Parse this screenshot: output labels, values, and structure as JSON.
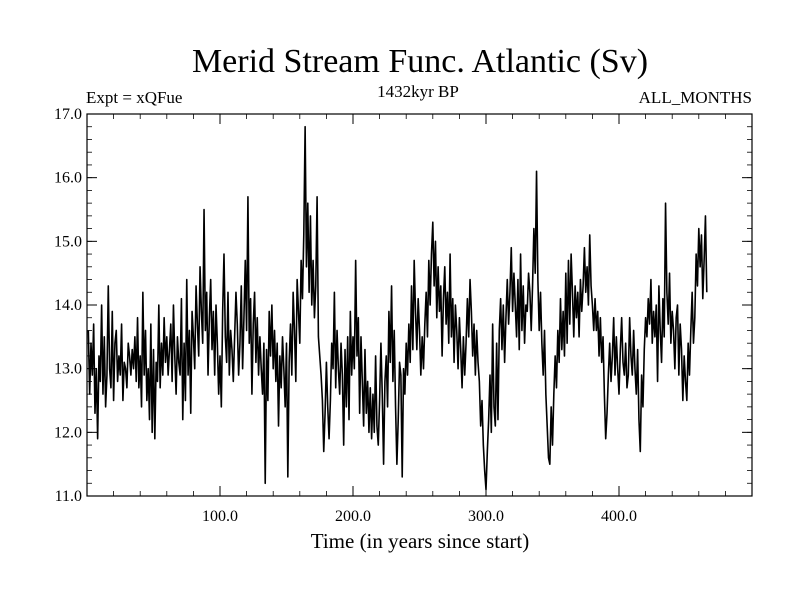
{
  "chart_data": {
    "type": "line",
    "title": "Merid Stream Func. Atlantic (Sv)",
    "subtitle_left": "Expt = xQFue",
    "subtitle_center": "1432kyr BP",
    "subtitle_right": "ALL_MONTHS",
    "xlabel": "Time (in years since start)",
    "ylabel": "",
    "xlim": [
      0,
      500
    ],
    "ylim": [
      11.0,
      17.0
    ],
    "x_ticks": [
      100,
      200,
      300,
      400
    ],
    "x_tick_labels": [
      "100.0",
      "200.0",
      "300.0",
      "400.0"
    ],
    "y_ticks": [
      11,
      12,
      13,
      14,
      15,
      16,
      17
    ],
    "y_tick_labels": [
      "11.0",
      "12.0",
      "13.0",
      "14.0",
      "15.0",
      "16.0",
      "17.0"
    ],
    "grid": false,
    "line_color": "#000000",
    "series": [
      {
        "x_start": 1,
        "x_step": 1,
        "values": [
          13.6,
          12.6,
          13.4,
          12.9,
          13.7,
          12.3,
          13.0,
          11.9,
          13.2,
          12.8,
          14.0,
          12.6,
          13.5,
          12.4,
          12.9,
          14.3,
          13.0,
          12.7,
          13.9,
          12.5,
          13.4,
          13.6,
          12.8,
          13.2,
          12.9,
          13.7,
          12.5,
          13.1,
          13.0,
          12.7,
          13.4,
          13.2,
          12.9,
          13.3,
          13.0,
          13.5,
          12.8,
          13.8,
          12.7,
          13.2,
          12.4,
          14.2,
          12.9,
          13.6,
          12.5,
          13.0,
          12.2,
          13.7,
          12.0,
          13.3,
          11.9,
          13.1,
          12.8,
          14.0,
          12.7,
          13.4,
          12.9,
          13.8,
          13.1,
          13.5,
          12.9,
          13.3,
          13.7,
          12.8,
          14.0,
          13.2,
          12.6,
          13.5,
          13.1,
          12.9,
          14.1,
          12.2,
          13.4,
          12.5,
          14.4,
          12.9,
          13.6,
          12.3,
          13.9,
          13.5,
          13.0,
          14.3,
          13.7,
          13.2,
          14.6,
          13.9,
          13.4,
          15.5,
          13.6,
          14.2,
          12.9,
          13.8,
          14.4,
          13.3,
          13.9,
          12.9,
          14.0,
          13.4,
          12.6,
          13.2,
          12.4,
          13.9,
          14.8,
          13.5,
          13.1,
          14.2,
          12.9,
          13.6,
          13.3,
          12.8,
          13.5,
          14.2,
          13.7,
          12.9,
          13.4,
          14.3,
          13.0,
          13.8,
          14.7,
          13.6,
          15.7,
          13.4,
          14.1,
          12.6,
          13.7,
          14.2,
          13.1,
          13.8,
          12.9,
          13.5,
          13.0,
          12.6,
          13.4,
          11.2,
          13.3,
          12.5,
          13.9,
          13.2,
          14.0,
          13.0,
          13.6,
          12.8,
          13.4,
          12.1,
          13.2,
          12.7,
          13.5,
          13.0,
          12.4,
          13.4,
          11.3,
          13.1,
          13.7,
          12.9,
          14.2,
          13.6,
          12.8,
          14.4,
          13.9,
          13.4,
          14.7,
          14.1,
          15.1,
          16.8,
          14.6,
          15.6,
          14.2,
          15.4,
          14.0,
          14.7,
          13.8,
          14.3,
          15.7,
          13.5,
          13.2,
          12.9,
          12.5,
          11.7,
          12.3,
          13.1,
          12.4,
          11.9,
          12.5,
          13.4,
          13.0,
          14.2,
          12.7,
          13.6,
          13.0,
          12.6,
          13.4,
          12.9,
          11.8,
          13.3,
          12.4,
          13.5,
          12.2,
          13.9,
          12.9,
          13.5,
          13.0,
          14.7,
          13.2,
          13.8,
          12.3,
          13.5,
          12.8,
          12.1,
          13.3,
          12.3,
          12.8,
          12.0,
          12.7,
          11.9,
          12.6,
          12.0,
          13.2,
          12.1,
          11.8,
          12.5,
          13.4,
          12.6,
          11.5,
          12.8,
          13.2,
          12.4,
          13.9,
          13.1,
          14.3,
          12.8,
          13.6,
          12.4,
          11.5,
          12.2,
          13.1,
          12.9,
          11.3,
          13.0,
          12.6,
          13.4,
          12.9,
          13.7,
          13.1,
          14.3,
          13.3,
          14.7,
          13.9,
          13.3,
          14.1,
          13.6,
          12.9,
          13.5,
          13.0,
          13.7,
          14.2,
          13.5,
          14.7,
          14.0,
          14.8,
          15.3,
          14.3,
          15.0,
          13.8,
          14.6,
          13.9,
          14.3,
          13.2,
          14.1,
          14.6,
          13.7,
          14.2,
          13.4,
          14.8,
          13.5,
          14.1,
          13.1,
          14.0,
          13.6,
          13.0,
          13.8,
          13.3,
          12.7,
          13.5,
          12.9,
          13.4,
          14.1,
          13.5,
          14.4,
          13.9,
          13.2,
          13.7,
          12.9,
          13.6,
          13.1,
          12.8,
          12.1,
          12.5,
          11.8,
          11.4,
          11.1,
          11.7,
          12.2,
          12.9,
          12.0,
          13.7,
          12.4,
          12.1,
          13.4,
          12.2,
          13.6,
          14.1,
          13.3,
          14.0,
          13.1,
          13.8,
          14.4,
          13.7,
          14.2,
          14.9,
          13.9,
          14.5,
          14.0,
          13.5,
          14.4,
          13.3,
          14.8,
          13.6,
          14.3,
          13.4,
          14.0,
          13.9,
          14.5,
          14.2,
          13.6,
          14.3,
          15.2,
          14.5,
          16.1,
          14.4,
          13.6,
          14.2,
          13.4,
          12.9,
          13.6,
          12.6,
          12.1,
          11.6,
          11.5,
          12.4,
          11.8,
          12.6,
          13.2,
          12.7,
          13.6,
          13.1,
          14.1,
          13.3,
          13.9,
          13.2,
          14.5,
          13.4,
          14.7,
          13.7,
          14.8,
          14.2,
          13.5,
          14.3,
          13.8,
          14.2,
          13.5,
          14.4,
          13.9,
          14.3,
          14.9,
          14.2,
          14.6,
          14.0,
          15.1,
          14.3,
          14.0,
          13.6,
          14.1,
          13.6,
          13.9,
          13.2,
          13.8,
          13.1,
          13.5,
          12.6,
          11.9,
          12.3,
          12.9,
          13.4,
          12.8,
          13.2,
          13.8,
          12.9,
          13.5,
          13.0,
          12.6,
          13.3,
          13.8,
          13.1,
          12.9,
          13.4,
          12.7,
          12.9,
          13.8,
          13.2,
          12.9,
          13.6,
          13.0,
          12.6,
          13.3,
          12.2,
          11.7,
          12.9,
          12.4,
          13.3,
          13.8,
          13.5,
          14.1,
          13.7,
          14.4,
          13.4,
          13.9,
          13.5,
          14.0,
          12.8,
          14.3,
          13.6,
          13.1,
          14.1,
          13.5,
          15.6,
          14.2,
          13.7,
          14.5,
          13.4,
          13.9,
          13.6,
          13.0,
          13.8,
          14.0,
          12.9,
          13.7,
          13.3,
          12.5,
          13.2,
          12.8,
          12.5,
          13.4,
          12.9,
          13.6,
          14.2,
          13.4,
          13.8,
          14.8,
          14.3,
          15.2,
          14.6,
          15.1,
          14.1,
          14.7,
          15.4,
          14.2
        ]
      }
    ]
  }
}
